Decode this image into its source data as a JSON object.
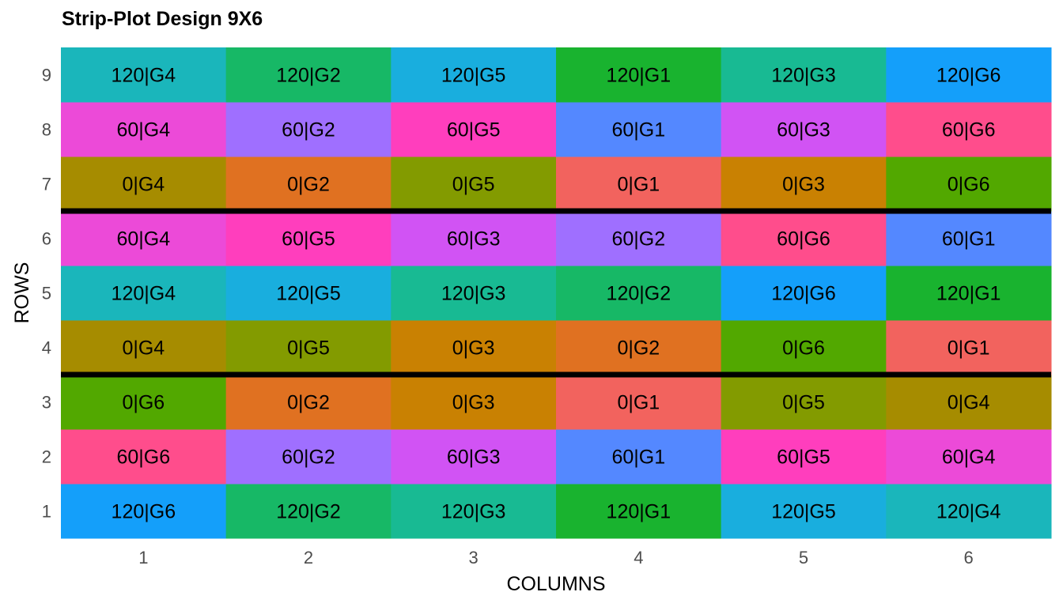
{
  "chart_data": {
    "type": "heatmap",
    "title": "Strip-Plot Design 9X6",
    "xlabel": "COLUMNS",
    "ylabel": "ROWS",
    "x_ticks": [
      "1",
      "2",
      "3",
      "4",
      "5",
      "6"
    ],
    "y_ticks": [
      "1",
      "2",
      "3",
      "4",
      "5",
      "6",
      "7",
      "8",
      "9"
    ],
    "block_separators_after_row": [
      3,
      6
    ],
    "rows": [
      {
        "row": 1,
        "cells": [
          "120|G6",
          "120|G2",
          "120|G3",
          "120|G1",
          "120|G5",
          "120|G4"
        ]
      },
      {
        "row": 2,
        "cells": [
          "60|G6",
          "60|G2",
          "60|G3",
          "60|G1",
          "60|G5",
          "60|G4"
        ]
      },
      {
        "row": 3,
        "cells": [
          "0|G6",
          "0|G2",
          "0|G3",
          "0|G1",
          "0|G5",
          "0|G4"
        ]
      },
      {
        "row": 4,
        "cells": [
          "0|G4",
          "0|G5",
          "0|G3",
          "0|G2",
          "0|G6",
          "0|G1"
        ]
      },
      {
        "row": 5,
        "cells": [
          "120|G4",
          "120|G5",
          "120|G3",
          "120|G2",
          "120|G6",
          "120|G1"
        ]
      },
      {
        "row": 6,
        "cells": [
          "60|G4",
          "60|G5",
          "60|G3",
          "60|G2",
          "60|G6",
          "60|G1"
        ]
      },
      {
        "row": 7,
        "cells": [
          "0|G4",
          "0|G2",
          "0|G5",
          "0|G1",
          "0|G3",
          "0|G6"
        ]
      },
      {
        "row": 8,
        "cells": [
          "60|G4",
          "60|G2",
          "60|G5",
          "60|G1",
          "60|G3",
          "60|G6"
        ]
      },
      {
        "row": 9,
        "cells": [
          "120|G4",
          "120|G2",
          "120|G5",
          "120|G1",
          "120|G3",
          "120|G6"
        ]
      }
    ],
    "colors": {
      "0|G1": "#F2635E",
      "0|G2": "#E07121",
      "0|G3": "#C98102",
      "0|G4": "#A68C00",
      "0|G5": "#839B00",
      "0|G6": "#52A800",
      "60|G1": "#5488FF",
      "60|G2": "#9F6FFF",
      "60|G3": "#D153F4",
      "60|G4": "#EC4AD8",
      "60|G5": "#FF3EBD",
      "60|G6": "#FF4D8C",
      "120|G1": "#19B32F",
      "120|G2": "#17B866",
      "120|G3": "#18BA93",
      "120|G4": "#1AB6BB",
      "120|G5": "#19AEDE",
      "120|G6": "#149FFA"
    },
    "separator_color": "#000000",
    "grid": false
  }
}
